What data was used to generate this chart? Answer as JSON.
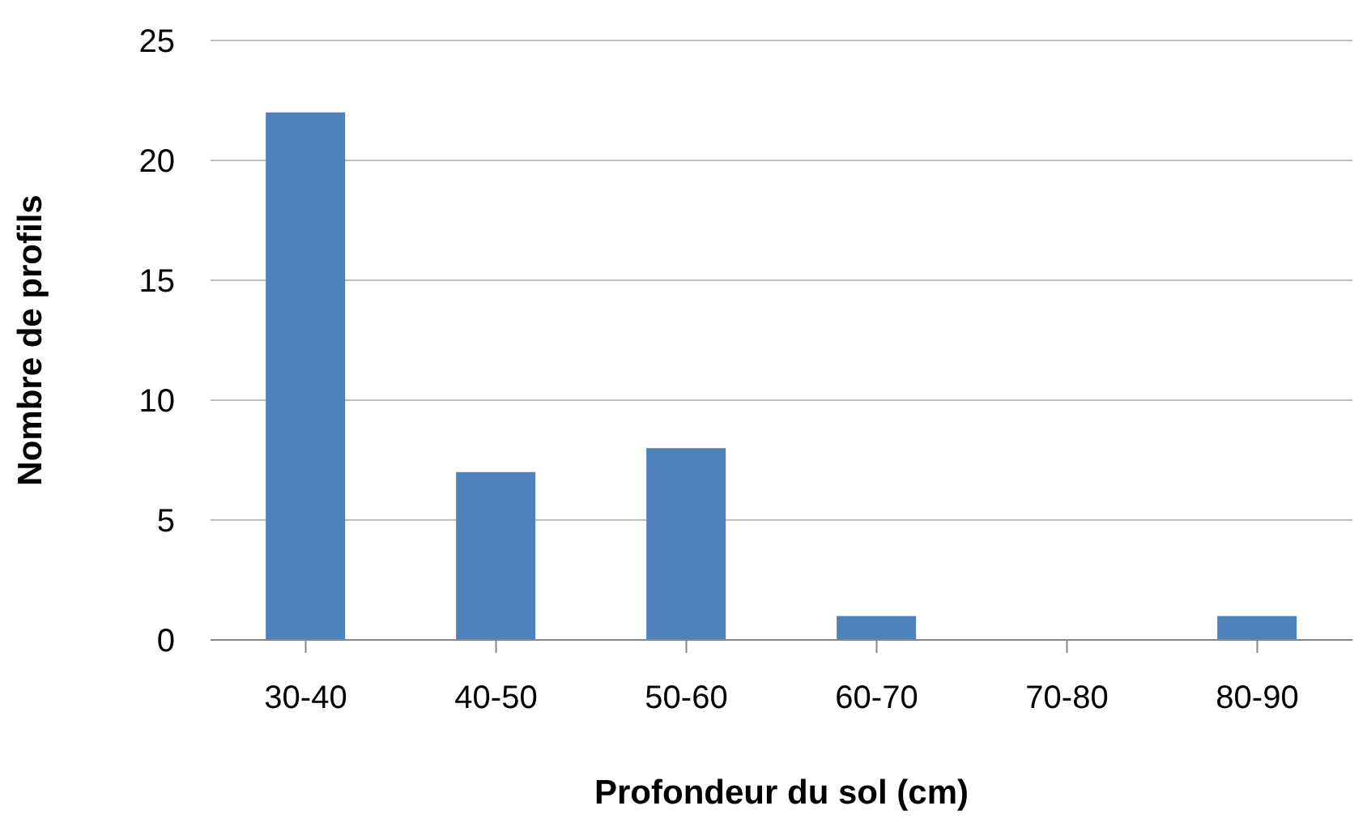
{
  "chart_data": {
    "type": "bar",
    "xlabel": "Profondeur du sol (cm)",
    "ylabel": "Nombre de profils",
    "categories": [
      "30-40",
      "40-50",
      "50-60",
      "60-70",
      "70-80",
      "80-90"
    ],
    "values": [
      22,
      7,
      8,
      1,
      0,
      1
    ],
    "color": "#4f81bd",
    "ylim": [
      0,
      25
    ],
    "yticks": [
      0,
      5,
      10,
      15,
      20,
      25
    ],
    "grid": "y"
  }
}
